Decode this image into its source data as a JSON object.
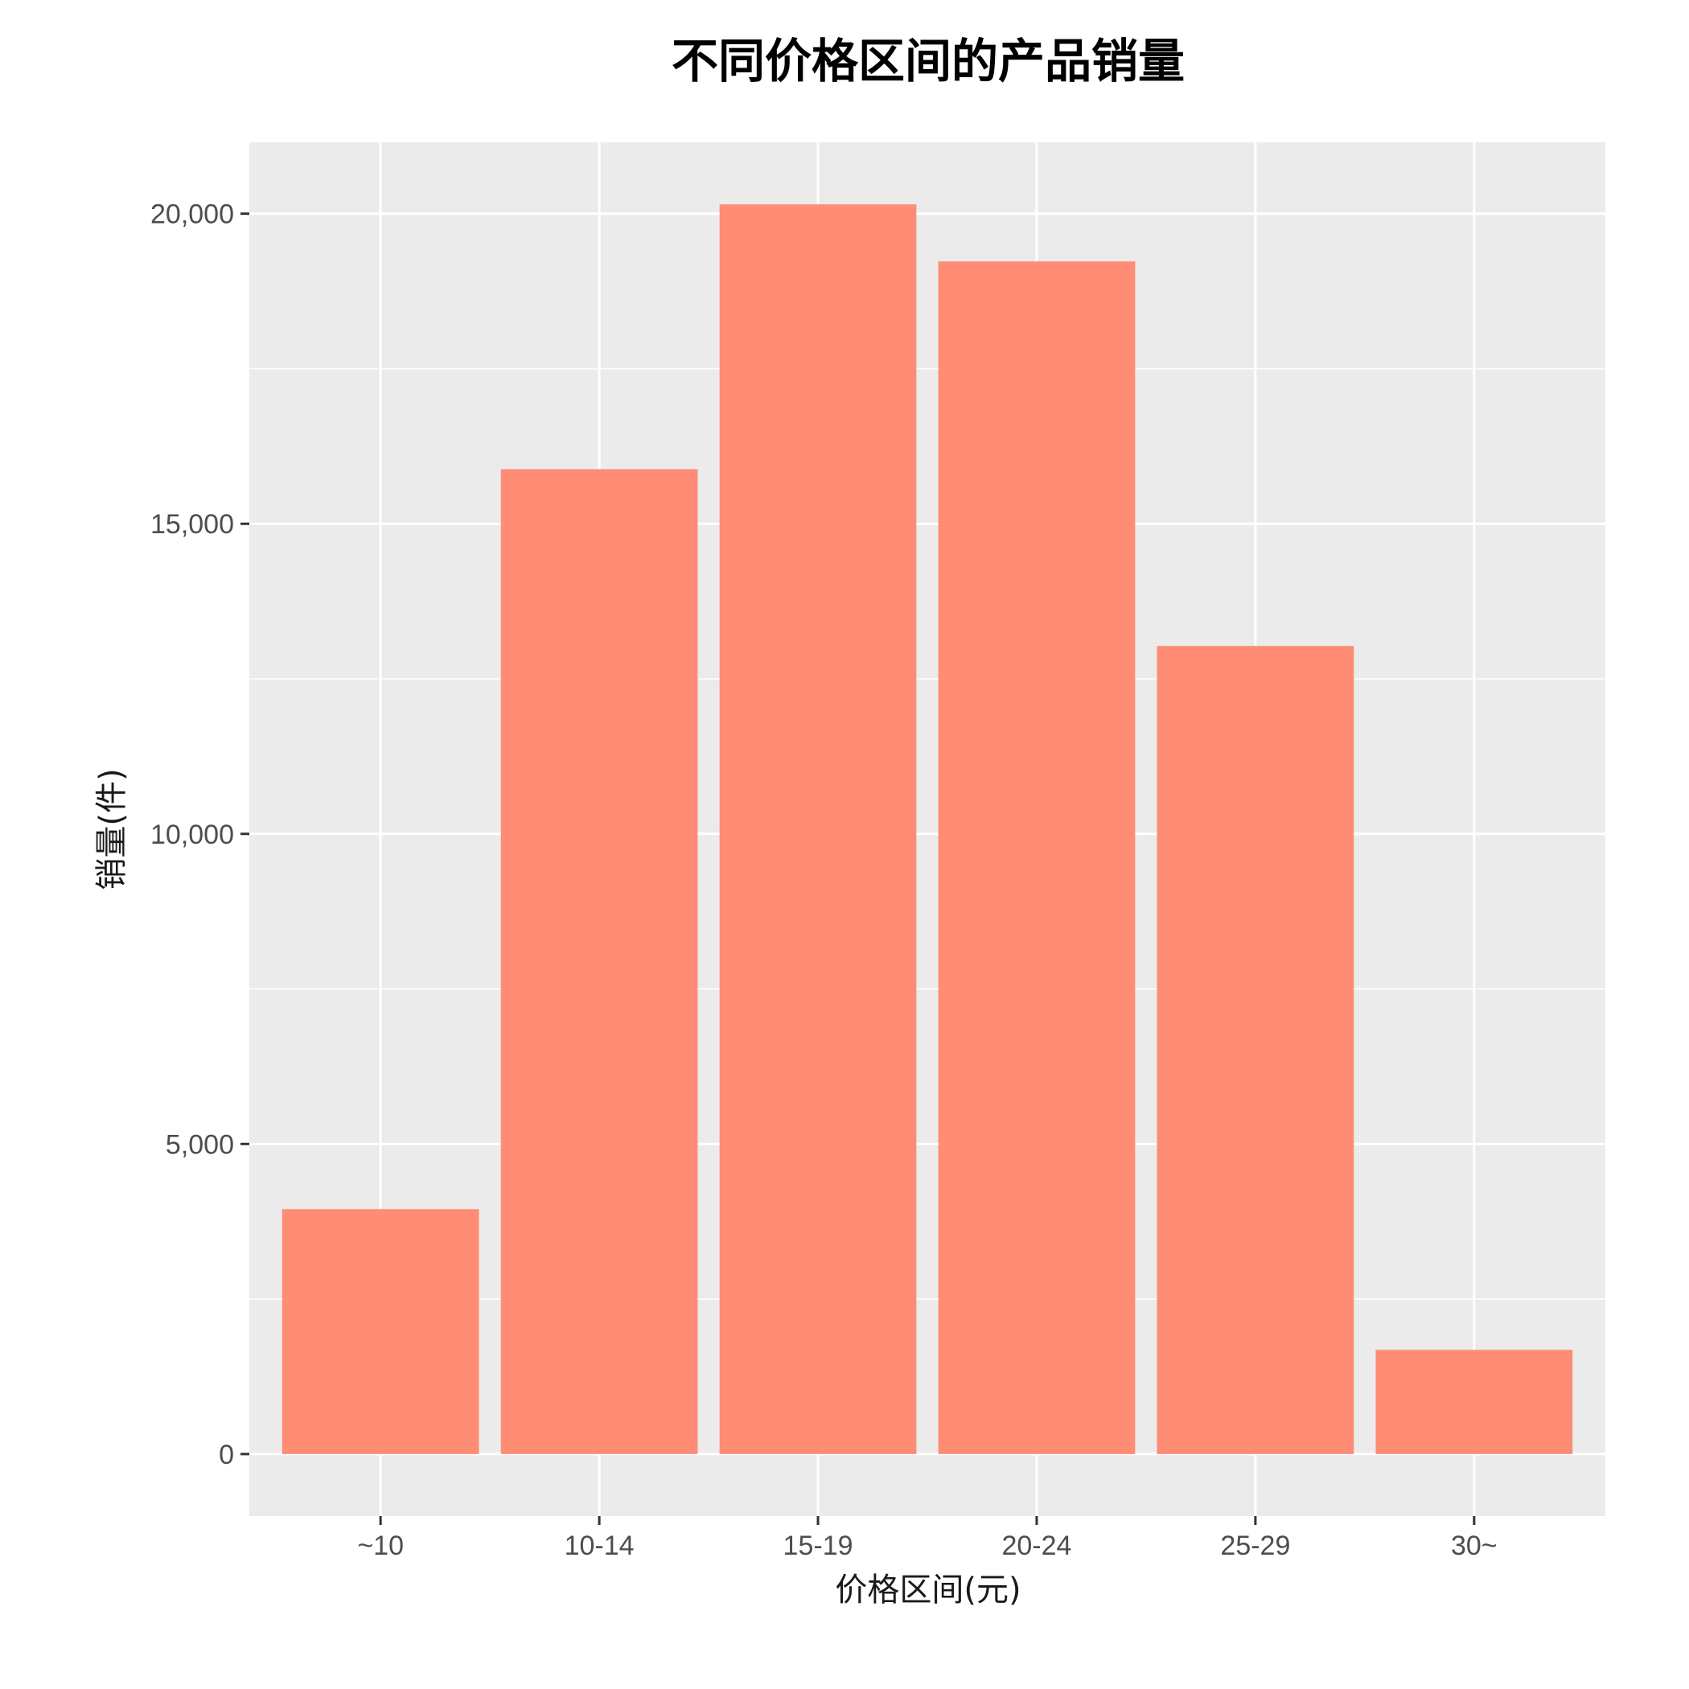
{
  "chart_data": {
    "type": "bar",
    "title": "不同价格区间的产品销量",
    "xlabel": "价格区间(元)",
    "ylabel": "销量(件)",
    "categories": [
      "~10",
      "10-14",
      "15-19",
      "20-24",
      "25-29",
      "30~"
    ],
    "values": [
      3950,
      15880,
      20150,
      19230,
      13030,
      1680
    ],
    "ylim": [
      -1000,
      21150
    ],
    "y_ticks": [
      0,
      5000,
      10000,
      15000,
      20000
    ],
    "y_tick_labels": [
      "0",
      "5,000",
      "10,000",
      "15,000",
      "20,000"
    ],
    "bar_color": "#ff8c75",
    "panel_color": "#ebebeb",
    "grid": true,
    "legend": "none"
  }
}
